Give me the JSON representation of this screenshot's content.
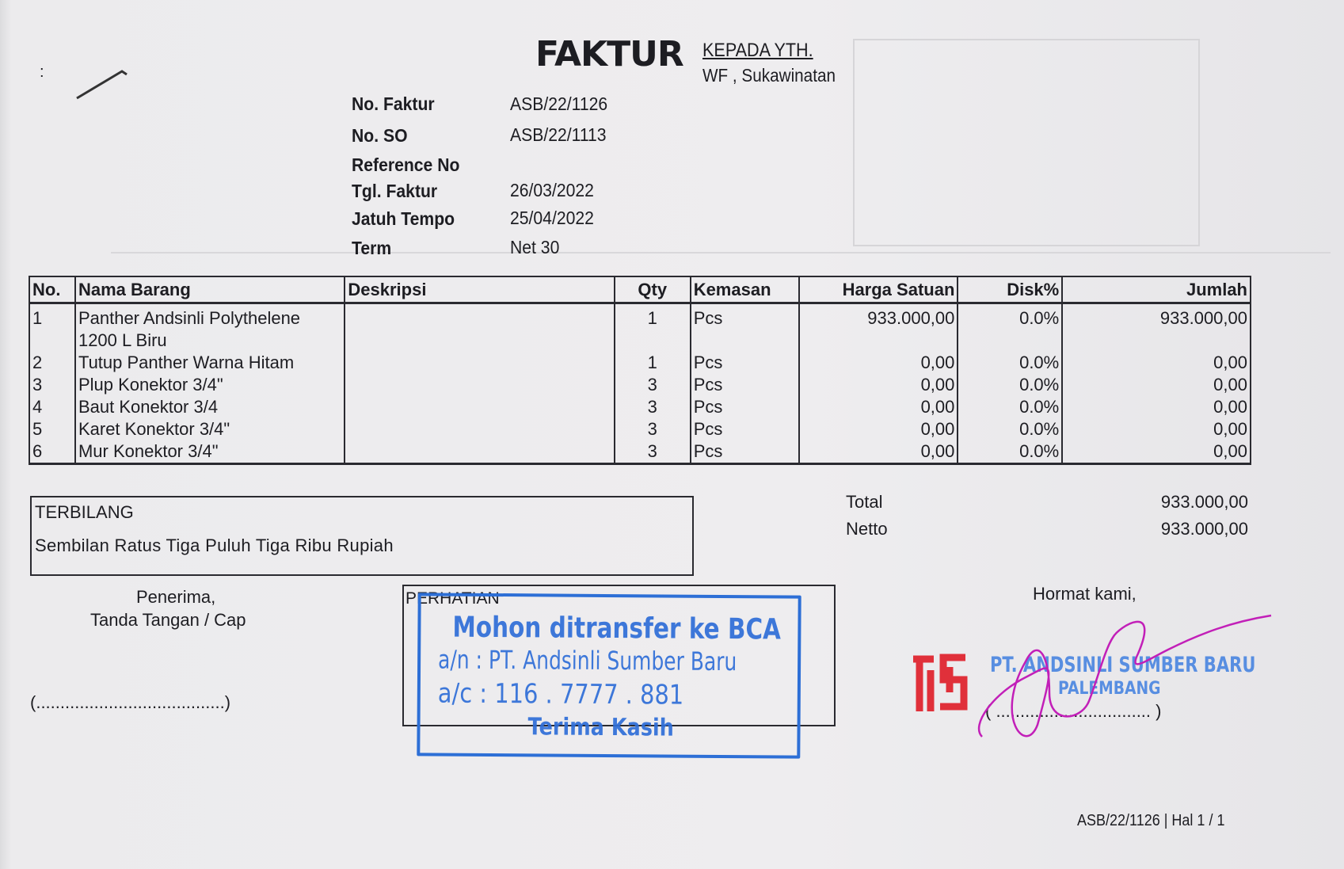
{
  "document": {
    "title": "FAKTUR",
    "recipient_label": "KEPADA YTH.",
    "recipient": "WF , Sukawinatan",
    "fields": [
      {
        "label": "No. Faktur",
        "value": "ASB/22/1126"
      },
      {
        "label": "No. SO",
        "value": "ASB/22/1113"
      },
      {
        "label": "Reference No",
        "value": ""
      },
      {
        "label": "Tgl. Faktur",
        "value": "26/03/2022"
      },
      {
        "label": "Jatuh Tempo",
        "value": "25/04/2022"
      },
      {
        "label": "Term",
        "value": "Net 30"
      }
    ]
  },
  "table": {
    "headers": [
      "No.",
      "Nama Barang",
      "Deskripsi",
      "Qty",
      "Kemasan",
      "Harga Satuan",
      "Disk%",
      "Jumlah"
    ],
    "rows": [
      {
        "no": "1",
        "name": "Panther Andsinli Polythelene",
        "name2": "1200 L Biru",
        "desc": "",
        "qty": "1",
        "unit": "Pcs",
        "price": "933.000,00",
        "disc": "0.0%",
        "total": "933.000,00"
      },
      {
        "no": "2",
        "name": "Tutup Panther Warna Hitam",
        "desc": "",
        "qty": "1",
        "unit": "Pcs",
        "price": "0,00",
        "disc": "0.0%",
        "total": "0,00"
      },
      {
        "no": "3",
        "name": "Plup Konektor 3/4\"",
        "desc": "",
        "qty": "3",
        "unit": "Pcs",
        "price": "0,00",
        "disc": "0.0%",
        "total": "0,00"
      },
      {
        "no": "4",
        "name": "Baut Konektor 3/4",
        "desc": "",
        "qty": "3",
        "unit": "Pcs",
        "price": "0,00",
        "disc": "0.0%",
        "total": "0,00"
      },
      {
        "no": "5",
        "name": "Karet Konektor 3/4\"",
        "desc": "",
        "qty": "3",
        "unit": "Pcs",
        "price": "0,00",
        "disc": "0.0%",
        "total": "0,00"
      },
      {
        "no": "6",
        "name": "Mur Konektor 3/4\"",
        "desc": "",
        "qty": "3",
        "unit": "Pcs",
        "price": "0,00",
        "disc": "0.0%",
        "total": "0,00"
      }
    ]
  },
  "terbilang": {
    "label": "TERBILANG",
    "value": "Sembilan Ratus Tiga Puluh Tiga Ribu Rupiah"
  },
  "totals": {
    "total_label": "Total",
    "total": "933.000,00",
    "netto_label": "Netto",
    "netto": "933.000,00"
  },
  "receiver": {
    "line1": "Penerima,",
    "line2": "Tanda Tangan / Cap",
    "sign_line": "(.......................................)"
  },
  "notice": {
    "label": "PERHATIAN",
    "stamp_line1": "Mohon ditransfer ke BCA",
    "stamp_line2": "a/n : PT. Andsinli Sumber Baru",
    "stamp_line3": "a/c : 116 . 7777 . 881",
    "stamp_line4": "Terima Kasih"
  },
  "sender": {
    "greeting": "Hormat kami,",
    "company": "PT. ANDSINLI SUMBER BARU",
    "city": "PALEMBANG",
    "sign_line": "( ................................ )",
    "logo_text": "ASB"
  },
  "footer": {
    "page_ref": "ASB/22/1126 | Hal 1 / 1"
  },
  "colors": {
    "stamp_blue": "#2f6ed8",
    "logo_red": "#e0303a",
    "signature_magenta": "#c21fb8",
    "ink": "#1d1d22"
  }
}
